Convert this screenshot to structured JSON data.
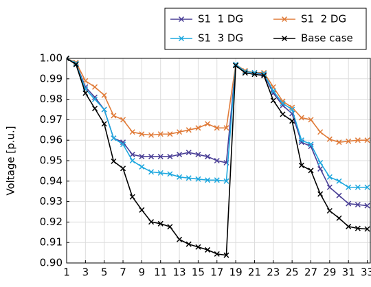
{
  "chart_data": {
    "type": "line",
    "ylabel": "Voltage [p.u.]",
    "x": [
      1,
      2,
      3,
      4,
      5,
      6,
      7,
      8,
      9,
      10,
      11,
      12,
      13,
      14,
      15,
      16,
      17,
      18,
      19,
      20,
      21,
      22,
      23,
      24,
      25,
      26,
      27,
      28,
      29,
      30,
      31,
      32,
      33
    ],
    "xlim": [
      1,
      33.4
    ],
    "xticks": [
      1,
      3,
      5,
      7,
      9,
      11,
      13,
      15,
      17,
      19,
      21,
      23,
      25,
      27,
      29,
      31,
      33
    ],
    "ylim": [
      0.9,
      1.0
    ],
    "yticks": [
      {
        "value": 0.9,
        "label": "0.90"
      },
      0.91,
      0.92,
      0.93,
      0.94,
      0.95,
      0.96,
      0.97,
      0.98,
      0.99,
      {
        "value": 1.0,
        "label": "1.00"
      }
    ],
    "grid": true,
    "legend": "top",
    "series": [
      {
        "name": "S1  1 DG",
        "color": "#4a3f96",
        "values": [
          1.0,
          0.9975,
          0.986,
          0.981,
          0.975,
          0.961,
          0.959,
          0.953,
          0.952,
          0.952,
          0.952,
          0.952,
          0.953,
          0.954,
          0.953,
          0.952,
          0.95,
          0.949,
          0.997,
          0.9935,
          0.993,
          0.992,
          0.983,
          0.977,
          0.973,
          0.959,
          0.957,
          0.946,
          0.937,
          0.933,
          0.929,
          0.9285,
          0.928
        ]
      },
      {
        "name": "S1  2 DG",
        "color": "#e07b39",
        "values": [
          1.0,
          0.998,
          0.989,
          0.986,
          0.982,
          0.972,
          0.97,
          0.964,
          0.963,
          0.9625,
          0.963,
          0.963,
          0.964,
          0.965,
          0.966,
          0.968,
          0.966,
          0.966,
          0.997,
          0.994,
          0.993,
          0.993,
          0.986,
          0.979,
          0.976,
          0.971,
          0.97,
          0.964,
          0.9605,
          0.959,
          0.9595,
          0.96,
          0.96
        ]
      },
      {
        "name": "S1  3 DG",
        "color": "#1fa8df",
        "values": [
          1.0,
          0.9975,
          0.985,
          0.98,
          0.975,
          0.961,
          0.958,
          0.95,
          0.947,
          0.9445,
          0.944,
          0.9435,
          0.942,
          0.9415,
          0.941,
          0.9405,
          0.9405,
          0.94,
          0.997,
          0.9935,
          0.993,
          0.9925,
          0.984,
          0.978,
          0.975,
          0.96,
          0.958,
          0.949,
          0.942,
          0.94,
          0.937,
          0.937,
          0.937
        ]
      },
      {
        "name": "Base case",
        "color": "#000000",
        "values": [
          1.0,
          0.997,
          0.983,
          0.9755,
          0.968,
          0.9497,
          0.9462,
          0.9323,
          0.9259,
          0.9201,
          0.9192,
          0.9177,
          0.9115,
          0.9092,
          0.9078,
          0.9064,
          0.9044,
          0.9038,
          0.9965,
          0.9929,
          0.9922,
          0.9916,
          0.9794,
          0.9727,
          0.9694,
          0.9477,
          0.9452,
          0.9337,
          0.9255,
          0.9219,
          0.9178,
          0.9169,
          0.9166
        ]
      }
    ]
  }
}
